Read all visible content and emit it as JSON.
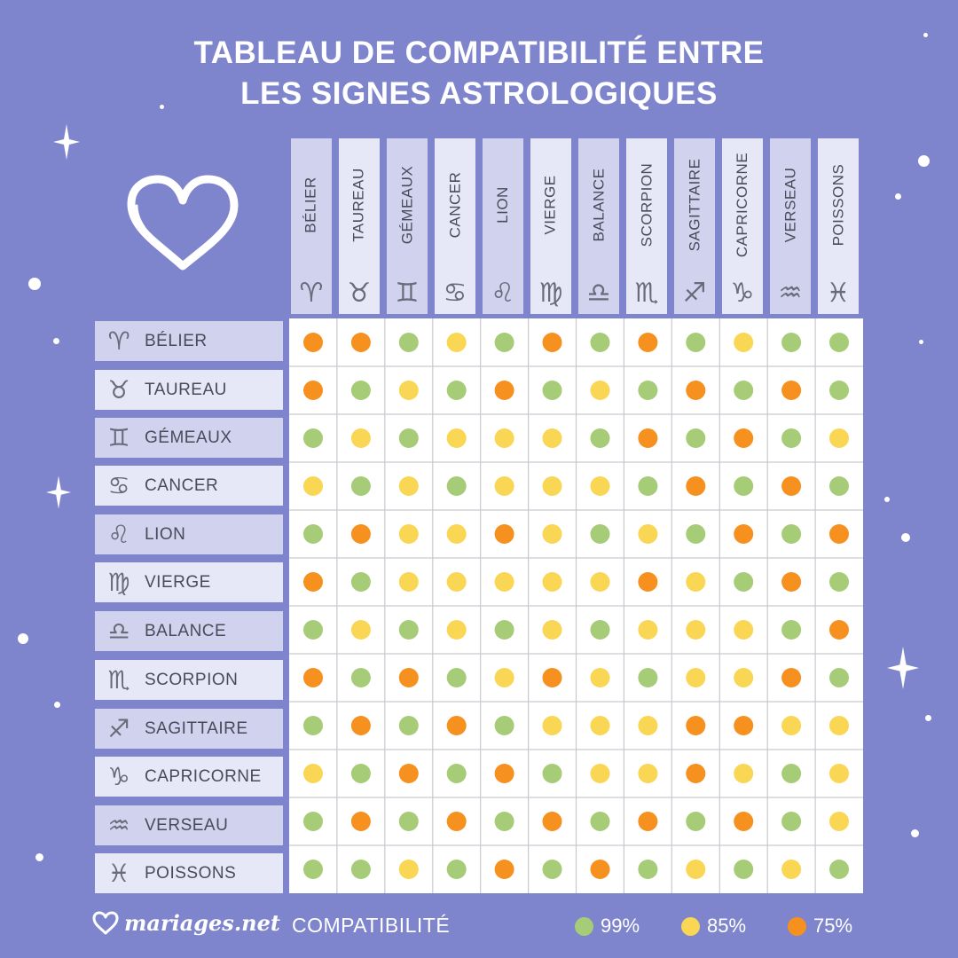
{
  "title": {
    "line1": "TABLEAU DE COMPATIBILITÉ ENTRE",
    "line2": "LES SIGNES ASTROLOGIQUES"
  },
  "signs": [
    {
      "name": "BÉLIER",
      "glyph": "♈",
      "icon": "aries-icon"
    },
    {
      "name": "TAUREAU",
      "glyph": "♉",
      "icon": "taurus-icon"
    },
    {
      "name": "GÉMEAUX",
      "glyph": "♊",
      "icon": "gemini-icon"
    },
    {
      "name": "CANCER",
      "glyph": "♋",
      "icon": "cancer-icon"
    },
    {
      "name": "LION",
      "glyph": "♌",
      "icon": "leo-icon"
    },
    {
      "name": "VIERGE",
      "glyph": "♍",
      "icon": "virgo-icon"
    },
    {
      "name": "BALANCE",
      "glyph": "♎",
      "icon": "libra-icon"
    },
    {
      "name": "SCORPION",
      "glyph": "♏",
      "icon": "scorpio-icon"
    },
    {
      "name": "SAGITTAIRE",
      "glyph": "♐",
      "icon": "sagittarius-icon"
    },
    {
      "name": "CAPRICORNE",
      "glyph": "♑",
      "icon": "capricorn-icon"
    },
    {
      "name": "VERSEAU",
      "glyph": "♒",
      "icon": "aquarius-icon"
    },
    {
      "name": "POISSONS",
      "glyph": "♓",
      "icon": "pisces-icon"
    }
  ],
  "matrix": [
    [
      75,
      75,
      99,
      85,
      99,
      75,
      99,
      75,
      99,
      85,
      99,
      99
    ],
    [
      75,
      99,
      85,
      99,
      75,
      99,
      85,
      99,
      75,
      99,
      75,
      99
    ],
    [
      99,
      85,
      99,
      85,
      85,
      85,
      99,
      75,
      99,
      75,
      99,
      85
    ],
    [
      85,
      99,
      85,
      99,
      85,
      85,
      85,
      99,
      75,
      99,
      75,
      99
    ],
    [
      99,
      75,
      85,
      85,
      75,
      85,
      99,
      85,
      99,
      75,
      99,
      75
    ],
    [
      75,
      99,
      85,
      85,
      85,
      85,
      85,
      75,
      85,
      99,
      75,
      99
    ],
    [
      99,
      85,
      99,
      85,
      99,
      85,
      99,
      85,
      85,
      85,
      99,
      75
    ],
    [
      75,
      99,
      75,
      99,
      85,
      75,
      85,
      99,
      85,
      85,
      75,
      99
    ],
    [
      99,
      75,
      99,
      75,
      99,
      85,
      85,
      85,
      75,
      75,
      85,
      85
    ],
    [
      85,
      99,
      75,
      99,
      75,
      99,
      85,
      85,
      75,
      85,
      99,
      85
    ],
    [
      99,
      75,
      99,
      75,
      99,
      75,
      99,
      75,
      99,
      75,
      99,
      85
    ],
    [
      99,
      99,
      85,
      99,
      75,
      99,
      75,
      99,
      85,
      99,
      85,
      99
    ]
  ],
  "levels": {
    "99": {
      "label": "99%",
      "color": "#a6cc78"
    },
    "85": {
      "label": "85%",
      "color": "#f9d653"
    },
    "75": {
      "label": "75%",
      "color": "#f6901e"
    }
  },
  "legend": {
    "title": "COMPATIBILITÉ",
    "items": [
      {
        "label": "99%",
        "color": "#a6cc78"
      },
      {
        "label": "85%",
        "color": "#f9d653"
      },
      {
        "label": "75%",
        "color": "#f6901e"
      }
    ]
  },
  "brand": {
    "name": "mariages.net",
    "icon": "heart-logo-icon"
  },
  "colors": {
    "background": "#7f85cc",
    "header_dark": "#d0d2ee",
    "header_light": "#e7e8f7",
    "grid_line": "#c8c9cf"
  }
}
